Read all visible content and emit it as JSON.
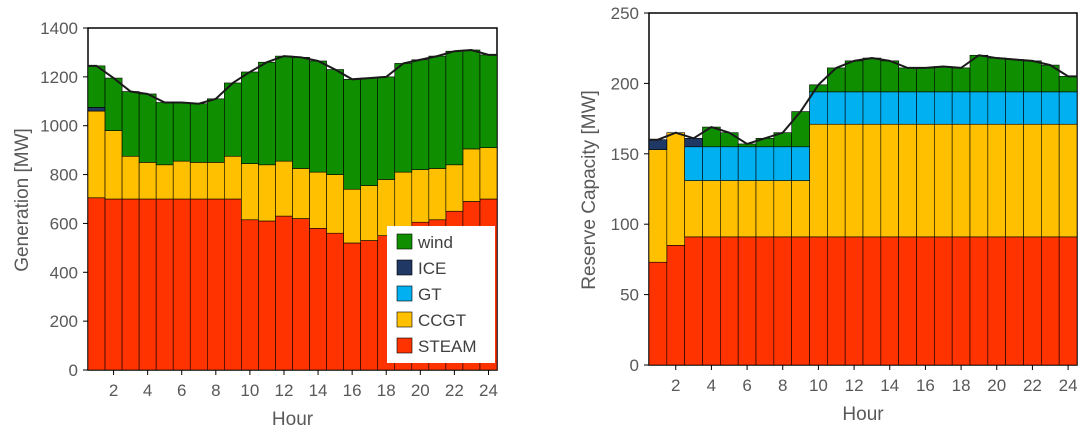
{
  "chart_data": [
    {
      "type": "bar",
      "stacked": true,
      "xlabel": "Hour",
      "ylabel": "Generation [MW]",
      "ylim": [
        0,
        1400
      ],
      "yticks": [
        0,
        200,
        400,
        600,
        800,
        1000,
        1200,
        1400
      ],
      "x": [
        1,
        2,
        3,
        4,
        5,
        6,
        7,
        8,
        9,
        10,
        11,
        12,
        13,
        14,
        15,
        16,
        17,
        18,
        19,
        20,
        21,
        22,
        23,
        24
      ],
      "xticks": [
        2,
        4,
        6,
        8,
        10,
        12,
        14,
        16,
        18,
        20,
        22,
        24
      ],
      "legend_position": "bottom-right",
      "legend": [
        "wind",
        "ICE",
        "GT",
        "CCGT",
        "STEAM"
      ],
      "series": [
        {
          "name": "STEAM",
          "color": "#ff3300",
          "values": [
            705,
            700,
            700,
            700,
            700,
            700,
            700,
            700,
            700,
            615,
            610,
            630,
            620,
            580,
            560,
            520,
            530,
            550,
            580,
            605,
            615,
            650,
            690,
            700
          ]
        },
        {
          "name": "CCGT",
          "color": "#ffc000",
          "values": [
            355,
            280,
            175,
            150,
            140,
            155,
            150,
            150,
            175,
            230,
            230,
            225,
            205,
            230,
            240,
            220,
            225,
            230,
            230,
            215,
            210,
            190,
            215,
            210
          ]
        },
        {
          "name": "GT",
          "color": "#00b0f0",
          "values": [
            0,
            0,
            0,
            0,
            0,
            0,
            0,
            0,
            0,
            0,
            0,
            0,
            0,
            0,
            0,
            0,
            0,
            0,
            0,
            0,
            0,
            0,
            0,
            0
          ]
        },
        {
          "name": "ICE",
          "color": "#1f3864",
          "values": [
            15,
            0,
            0,
            0,
            0,
            0,
            0,
            0,
            0,
            0,
            0,
            0,
            0,
            0,
            0,
            0,
            0,
            0,
            0,
            0,
            0,
            0,
            0,
            0
          ]
        },
        {
          "name": "wind",
          "color": "#0f8f00",
          "values": [
            170,
            215,
            265,
            280,
            255,
            240,
            240,
            260,
            300,
            375,
            420,
            430,
            455,
            455,
            430,
            450,
            440,
            420,
            445,
            450,
            460,
            465,
            405,
            380
          ]
        }
      ]
    },
    {
      "type": "bar",
      "stacked": true,
      "xlabel": "Hour",
      "ylabel": "Reserve Capacity [MW]",
      "ylim": [
        0,
        250
      ],
      "yticks": [
        0,
        50,
        100,
        150,
        200,
        250
      ],
      "x": [
        1,
        2,
        3,
        4,
        5,
        6,
        7,
        8,
        9,
        10,
        11,
        12,
        13,
        14,
        15,
        16,
        17,
        18,
        19,
        20,
        21,
        22,
        23,
        24
      ],
      "xticks": [
        2,
        4,
        6,
        8,
        10,
        12,
        14,
        16,
        18,
        20,
        22,
        24
      ],
      "series": [
        {
          "name": "STEAM",
          "color": "#ff3300",
          "values": [
            73,
            85,
            91,
            91,
            91,
            91,
            91,
            91,
            91,
            91,
            91,
            91,
            91,
            91,
            91,
            91,
            91,
            91,
            91,
            91,
            91,
            91,
            91,
            91
          ]
        },
        {
          "name": "CCGT",
          "color": "#ffc000",
          "values": [
            80,
            80,
            40,
            40,
            40,
            40,
            40,
            40,
            40,
            80,
            80,
            80,
            80,
            80,
            80,
            80,
            80,
            80,
            80,
            80,
            80,
            80,
            80,
            80
          ]
        },
        {
          "name": "GT",
          "color": "#00b0f0",
          "values": [
            0,
            0,
            24,
            24,
            24,
            24,
            24,
            24,
            24,
            23,
            23,
            23,
            23,
            23,
            23,
            23,
            23,
            23,
            23,
            23,
            23,
            23,
            23,
            23
          ]
        },
        {
          "name": "ICE",
          "color": "#1f3864",
          "values": [
            7,
            0,
            6,
            0,
            0,
            0,
            0,
            0,
            0,
            0,
            0,
            0,
            0,
            0,
            0,
            0,
            0,
            0,
            0,
            0,
            0,
            0,
            0,
            0
          ]
        },
        {
          "name": "wind",
          "color": "#0f8f00",
          "values": [
            0,
            0,
            0,
            14,
            10,
            2,
            6,
            10,
            25,
            5,
            17,
            22,
            24,
            22,
            17,
            17,
            18,
            17,
            26,
            24,
            23,
            22,
            19,
            11
          ]
        }
      ]
    }
  ]
}
